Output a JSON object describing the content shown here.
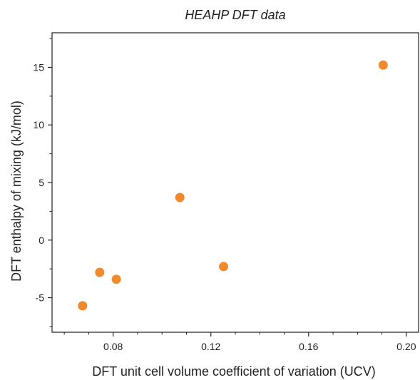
{
  "chart_data": {
    "type": "scatter",
    "title": "HEAHP DFT data",
    "xlabel": "DFT unit cell volume coefficient of variation (UCV)",
    "ylabel": "DFT enthalpy of mixing (kJ/mol)",
    "xlim": [
      0.055,
      0.205
    ],
    "ylim": [
      -8,
      18
    ],
    "x_ticks": [
      0.08,
      0.12,
      0.16,
      0.2
    ],
    "x_tick_labels": [
      "0.08",
      "0.12",
      "0.16",
      "0.20"
    ],
    "x_minor_ticks": [
      0.06,
      0.07,
      0.09,
      0.1,
      0.11,
      0.13,
      0.14,
      0.15,
      0.17,
      0.18,
      0.19
    ],
    "y_ticks": [
      -5,
      0,
      5,
      10,
      15
    ],
    "y_tick_labels": [
      "-5",
      "0",
      "5",
      "10",
      "15"
    ],
    "y_minor_ticks": [
      -7.5,
      -2.5,
      2.5,
      7.5,
      12.5,
      17.5
    ],
    "grid": false,
    "marker_color": "#f08a2c",
    "points": [
      {
        "x": 0.0675,
        "y": -5.7
      },
      {
        "x": 0.0745,
        "y": -2.8
      },
      {
        "x": 0.0813,
        "y": -3.4
      },
      {
        "x": 0.1073,
        "y": 3.7
      },
      {
        "x": 0.1252,
        "y": -2.3
      },
      {
        "x": 0.1905,
        "y": 15.2
      }
    ]
  }
}
